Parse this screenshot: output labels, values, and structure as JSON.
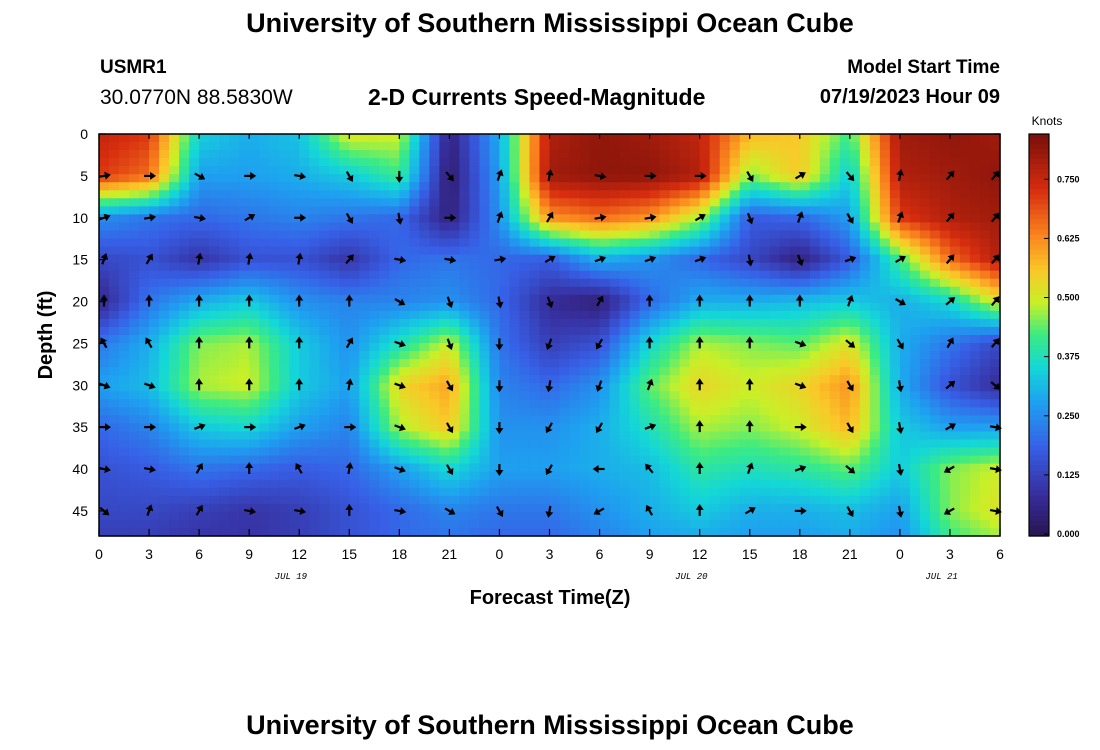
{
  "header": {
    "title": "University of Southern Mississippi Ocean Cube",
    "station_id": "USMR1",
    "coordinates": "30.0770N  88.5830W",
    "product": "2-D Currents Speed-Magnitude",
    "model_start_label": "Model Start Time",
    "model_start_value": "07/19/2023 Hour 09"
  },
  "footer": {
    "title": "University of Southern Mississippi Ocean Cube"
  },
  "chart_data": {
    "type": "heatmap",
    "title": "2-D Currents Speed-Magnitude",
    "xlabel": "Forecast Time(Z)",
    "ylabel": "Depth (ft)",
    "x_hours": [
      0,
      3,
      6,
      9,
      12,
      15,
      18,
      21,
      24,
      27,
      30,
      33,
      36,
      39,
      42,
      45,
      48,
      51,
      54
    ],
    "x_tick_labels": [
      "0",
      "3",
      "6",
      "9",
      "12",
      "15",
      "18",
      "21",
      "0",
      "3",
      "6",
      "9",
      "12",
      "15",
      "18",
      "21",
      "0",
      "3",
      "6"
    ],
    "date_labels": [
      {
        "text": "JUL 19",
        "hour": 11.5
      },
      {
        "text": "JUL 20",
        "hour": 35.5
      },
      {
        "text": "JUL 21",
        "hour": 50.5
      }
    ],
    "y_ticks": [
      0,
      5,
      10,
      15,
      20,
      25,
      30,
      35,
      40,
      45
    ],
    "ylim": [
      0,
      48
    ],
    "xlim": [
      0,
      54
    ],
    "colorbar": {
      "label": "Knots",
      "ticks": [
        "0.000",
        "0.125",
        "0.250",
        "0.375",
        "0.500",
        "0.625",
        "0.750"
      ],
      "range": [
        0,
        0.85
      ]
    },
    "speed_knots": {
      "times": [
        0,
        3,
        6,
        9,
        12,
        15,
        18,
        21,
        24,
        27,
        30,
        33,
        36,
        39,
        42,
        45,
        48,
        51,
        54
      ],
      "depths": [
        0,
        5,
        10,
        15,
        20,
        25,
        30,
        35,
        40,
        45,
        48
      ],
      "values": [
        [
          0.76,
          0.72,
          0.35,
          0.3,
          0.33,
          0.52,
          0.5,
          0.05,
          0.3,
          0.78,
          0.82,
          0.8,
          0.76,
          0.58,
          0.56,
          0.42,
          0.8,
          0.82,
          0.8
        ],
        [
          0.72,
          0.66,
          0.28,
          0.28,
          0.3,
          0.34,
          0.42,
          0.03,
          0.28,
          0.8,
          0.82,
          0.82,
          0.78,
          0.46,
          0.56,
          0.34,
          0.78,
          0.8,
          0.82
        ],
        [
          0.26,
          0.22,
          0.2,
          0.22,
          0.24,
          0.22,
          0.2,
          0.05,
          0.26,
          0.62,
          0.66,
          0.62,
          0.48,
          0.18,
          0.2,
          0.28,
          0.72,
          0.78,
          0.8
        ],
        [
          0.14,
          0.16,
          0.1,
          0.16,
          0.16,
          0.1,
          0.2,
          0.22,
          0.2,
          0.18,
          0.3,
          0.26,
          0.2,
          0.14,
          0.05,
          0.18,
          0.42,
          0.66,
          0.78
        ],
        [
          0.06,
          0.22,
          0.3,
          0.34,
          0.26,
          0.24,
          0.24,
          0.26,
          0.2,
          0.08,
          0.04,
          0.2,
          0.3,
          0.3,
          0.32,
          0.34,
          0.3,
          0.36,
          0.52
        ],
        [
          0.22,
          0.3,
          0.46,
          0.48,
          0.34,
          0.26,
          0.38,
          0.5,
          0.22,
          0.12,
          0.16,
          0.36,
          0.48,
          0.46,
          0.44,
          0.52,
          0.3,
          0.22,
          0.14
        ],
        [
          0.28,
          0.32,
          0.48,
          0.5,
          0.34,
          0.28,
          0.54,
          0.6,
          0.24,
          0.2,
          0.26,
          0.44,
          0.54,
          0.5,
          0.54,
          0.62,
          0.3,
          0.16,
          0.08
        ],
        [
          0.2,
          0.24,
          0.34,
          0.36,
          0.28,
          0.24,
          0.48,
          0.56,
          0.26,
          0.26,
          0.3,
          0.38,
          0.48,
          0.46,
          0.5,
          0.58,
          0.34,
          0.28,
          0.28
        ],
        [
          0.16,
          0.18,
          0.22,
          0.2,
          0.18,
          0.2,
          0.28,
          0.36,
          0.28,
          0.28,
          0.3,
          0.32,
          0.4,
          0.38,
          0.4,
          0.44,
          0.34,
          0.46,
          0.5
        ],
        [
          0.14,
          0.14,
          0.12,
          0.1,
          0.12,
          0.16,
          0.2,
          0.24,
          0.22,
          0.22,
          0.26,
          0.3,
          0.34,
          0.3,
          0.3,
          0.32,
          0.28,
          0.46,
          0.52
        ],
        [
          0.12,
          0.12,
          0.1,
          0.1,
          0.12,
          0.16,
          0.2,
          0.22,
          0.2,
          0.2,
          0.24,
          0.28,
          0.3,
          0.28,
          0.28,
          0.3,
          0.26,
          0.42,
          0.48
        ]
      ]
    },
    "vector_directions_deg": {
      "note": "approximate direction arrows point toward (0 = up/north, 90 = right/east)",
      "times": [
        0,
        3,
        6,
        9,
        12,
        15,
        18,
        21,
        24,
        27,
        30,
        33,
        36,
        39,
        42,
        45,
        48,
        51,
        54
      ],
      "depths": [
        5,
        10,
        15,
        20,
        25,
        30,
        35,
        40,
        45
      ],
      "values": [
        [
          80,
          90,
          120,
          90,
          100,
          150,
          180,
          140,
          20,
          10,
          100,
          90,
          90,
          150,
          60,
          140,
          10,
          40,
          40
        ],
        [
          70,
          80,
          100,
          60,
          90,
          150,
          170,
          90,
          20,
          30,
          80,
          80,
          60,
          160,
          20,
          150,
          20,
          40,
          40
        ],
        [
          20,
          30,
          10,
          10,
          10,
          40,
          100,
          100,
          80,
          60,
          70,
          70,
          70,
          170,
          160,
          70,
          60,
          40,
          40
        ],
        [
          0,
          0,
          0,
          0,
          0,
          0,
          120,
          160,
          170,
          160,
          30,
          0,
          0,
          0,
          0,
          20,
          120,
          50,
          40
        ],
        [
          330,
          330,
          0,
          0,
          0,
          30,
          110,
          160,
          180,
          200,
          210,
          0,
          0,
          0,
          110,
          130,
          150,
          30,
          40
        ],
        [
          110,
          110,
          0,
          0,
          0,
          10,
          110,
          150,
          180,
          190,
          200,
          20,
          0,
          0,
          110,
          150,
          170,
          50,
          130
        ],
        [
          90,
          90,
          70,
          90,
          70,
          90,
          110,
          150,
          180,
          210,
          210,
          70,
          0,
          0,
          90,
          150,
          170,
          60,
          100
        ],
        [
          100,
          100,
          30,
          0,
          330,
          10,
          110,
          150,
          180,
          210,
          270,
          320,
          0,
          20,
          70,
          130,
          170,
          240,
          100
        ],
        [
          130,
          20,
          30,
          100,
          100,
          0,
          100,
          120,
          150,
          190,
          240,
          330,
          0,
          60,
          90,
          150,
          170,
          240,
          100
        ]
      ]
    }
  }
}
